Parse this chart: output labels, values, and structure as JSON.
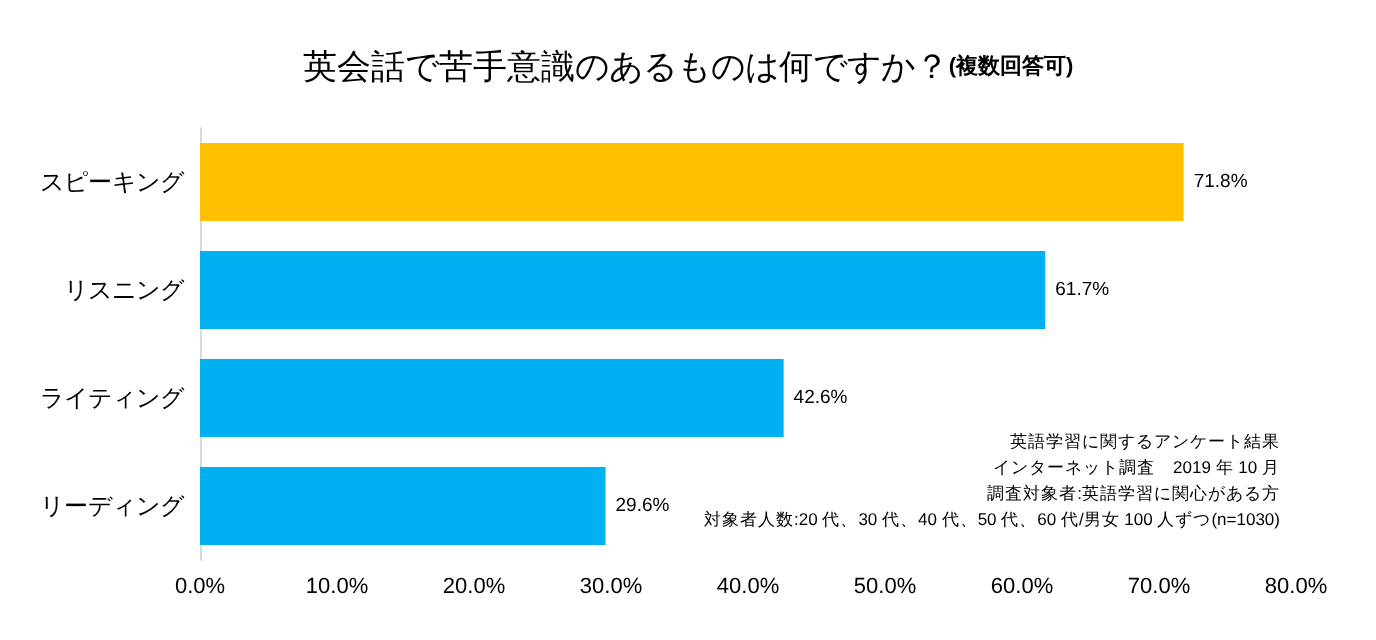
{
  "chart_data": {
    "type": "bar",
    "orientation": "horizontal",
    "title": "英会話で苦手意識のあるものは何ですか？",
    "subtitle": "(複数回答可)",
    "categories": [
      "スピーキング",
      "リスニング",
      "ライティング",
      "リーディング"
    ],
    "values": [
      71.8,
      61.7,
      42.6,
      29.6
    ],
    "colors": [
      "#ffc000",
      "#00b0f0",
      "#00b0f0",
      "#00b0f0"
    ],
    "value_labels": [
      "71.8%",
      "61.7%",
      "42.6%",
      "29.6%"
    ],
    "xlim": [
      0,
      80
    ],
    "xticks": [
      {
        "value": 0,
        "label": "0.0%"
      },
      {
        "value": 10,
        "label": "10.0%"
      },
      {
        "value": 20,
        "label": "20.0%"
      },
      {
        "value": 30,
        "label": "30.0%"
      },
      {
        "value": 40,
        "label": "40.0%"
      },
      {
        "value": 50,
        "label": "50.0%"
      },
      {
        "value": 60,
        "label": "60.0%"
      },
      {
        "value": 70,
        "label": "70.0%"
      },
      {
        "value": 80,
        "label": "80.0%"
      }
    ],
    "grid": false,
    "annotations": [
      "英語学習に関するアンケート結果",
      "インターネット調査　2019 年 10 月",
      "調査対象者:英語学習に関心がある方",
      "対象者人数:20 代、30 代、40 代、50 代、60 代/男女 100 人ずつ(n=1030)"
    ]
  }
}
